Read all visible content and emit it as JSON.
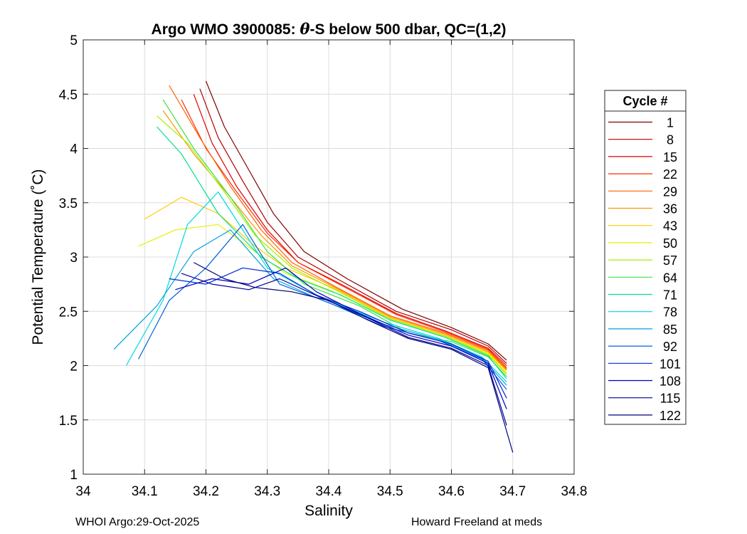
{
  "chart_data": {
    "type": "line",
    "title": "Argo WMO 3900085: θ-S below 500 dbar,  QC=(1,2)",
    "title_parts": {
      "prefix": "Argo WMO 3900085: ",
      "symbol": "θ",
      "suffix": "-S below 500 dbar,  QC=(1,2)"
    },
    "xlabel": "Salinity",
    "ylabel": "Potential Temperature (˚C)",
    "xlim": [
      34,
      34.8
    ],
    "ylim": [
      1,
      5
    ],
    "xticks": [
      34,
      34.1,
      34.2,
      34.3,
      34.4,
      34.5,
      34.6,
      34.7,
      34.8
    ],
    "xtick_labels": [
      "34",
      "34.1",
      "34.2",
      "34.3",
      "34.4",
      "34.5",
      "34.6",
      "34.7",
      "34.8"
    ],
    "yticks": [
      1,
      1.5,
      2,
      2.5,
      3,
      3.5,
      4,
      4.5,
      5
    ],
    "ytick_labels": [
      "1",
      "1.5",
      "2",
      "2.5",
      "3",
      "3.5",
      "4",
      "4.5",
      "5"
    ],
    "grid": true,
    "legend_title": "Cycle #",
    "legend_position": "right, outside plot",
    "series": [
      {
        "name": "1",
        "color": "#800000",
        "s": [
          34.2,
          34.23,
          34.27,
          34.31,
          34.36,
          34.43,
          34.52,
          34.6,
          34.66,
          34.69
        ],
        "t": [
          4.62,
          4.2,
          3.8,
          3.4,
          3.05,
          2.8,
          2.52,
          2.35,
          2.2,
          2.05
        ]
      },
      {
        "name": "8",
        "color": "#b20000",
        "s": [
          34.19,
          34.22,
          34.26,
          34.3,
          34.35,
          34.42,
          34.51,
          34.6,
          34.66,
          34.69
        ],
        "t": [
          4.55,
          4.1,
          3.7,
          3.32,
          3.0,
          2.78,
          2.5,
          2.33,
          2.18,
          2.02
        ]
      },
      {
        "name": "15",
        "color": "#e00000",
        "s": [
          34.18,
          34.21,
          34.25,
          34.3,
          34.35,
          34.42,
          34.51,
          34.59,
          34.66,
          34.69
        ],
        "t": [
          4.5,
          4.05,
          3.65,
          3.25,
          2.95,
          2.75,
          2.48,
          2.32,
          2.16,
          2.0
        ]
      },
      {
        "name": "22",
        "color": "#ff2a00",
        "s": [
          34.16,
          34.2,
          34.25,
          34.3,
          34.35,
          34.42,
          34.51,
          34.59,
          34.66,
          34.69
        ],
        "t": [
          4.45,
          4.0,
          3.6,
          3.22,
          2.95,
          2.74,
          2.47,
          2.31,
          2.15,
          1.98
        ]
      },
      {
        "name": "29",
        "color": "#ff6000",
        "s": [
          34.14,
          34.19,
          34.24,
          34.29,
          34.34,
          34.41,
          34.5,
          34.59,
          34.66,
          34.69
        ],
        "t": [
          4.58,
          4.1,
          3.65,
          3.25,
          2.95,
          2.73,
          2.46,
          2.3,
          2.14,
          1.97
        ]
      },
      {
        "name": "36",
        "color": "#ff9500",
        "s": [
          34.13,
          34.18,
          34.24,
          34.29,
          34.34,
          34.41,
          34.5,
          34.59,
          34.66,
          34.69
        ],
        "t": [
          4.35,
          3.95,
          3.55,
          3.2,
          2.92,
          2.72,
          2.45,
          2.29,
          2.13,
          1.96
        ]
      },
      {
        "name": "43",
        "color": "#ffcc00",
        "s": [
          34.1,
          34.16,
          34.22,
          34.28,
          34.33,
          34.41,
          34.5,
          34.59,
          34.66,
          34.69
        ],
        "t": [
          3.35,
          3.55,
          3.4,
          3.1,
          2.9,
          2.71,
          2.44,
          2.28,
          2.12,
          1.95
        ]
      },
      {
        "name": "50",
        "color": "#e6f000",
        "s": [
          34.09,
          34.15,
          34.22,
          34.28,
          34.33,
          34.4,
          34.5,
          34.59,
          34.66,
          34.69
        ],
        "t": [
          3.1,
          3.25,
          3.3,
          3.05,
          2.85,
          2.7,
          2.43,
          2.27,
          2.11,
          1.93
        ]
      },
      {
        "name": "57",
        "color": "#a6f000",
        "s": [
          34.12,
          34.17,
          34.23,
          34.28,
          34.34,
          34.41,
          34.5,
          34.59,
          34.66,
          34.69
        ],
        "t": [
          4.3,
          4.05,
          3.6,
          3.2,
          2.9,
          2.7,
          2.43,
          2.27,
          2.1,
          1.92
        ]
      },
      {
        "name": "64",
        "color": "#40e040",
        "s": [
          34.13,
          34.18,
          34.24,
          34.3,
          34.36,
          34.45,
          34.53,
          34.6,
          34.66,
          34.69
        ],
        "t": [
          4.45,
          4.0,
          3.55,
          3.05,
          2.75,
          2.55,
          2.3,
          2.22,
          2.08,
          1.9
        ]
      },
      {
        "name": "71",
        "color": "#00e08c",
        "s": [
          34.12,
          34.16,
          34.22,
          34.29,
          34.35,
          34.42,
          34.5,
          34.59,
          34.66,
          34.69
        ],
        "t": [
          4.2,
          3.95,
          3.4,
          3.0,
          2.8,
          2.65,
          2.42,
          2.26,
          2.09,
          1.88
        ]
      },
      {
        "name": "78",
        "color": "#00d8e0",
        "s": [
          34.07,
          34.13,
          34.17,
          34.22,
          34.3,
          34.39,
          34.49,
          34.58,
          34.65,
          34.69
        ],
        "t": [
          2.0,
          2.6,
          3.3,
          3.6,
          2.9,
          2.62,
          2.4,
          2.25,
          2.08,
          1.85
        ]
      },
      {
        "name": "85",
        "color": "#00a0e0",
        "s": [
          34.05,
          34.12,
          34.18,
          34.24,
          34.31,
          34.39,
          34.49,
          34.58,
          34.65,
          34.69
        ],
        "t": [
          2.15,
          2.55,
          3.05,
          3.25,
          2.8,
          2.6,
          2.38,
          2.24,
          2.07,
          1.82
        ]
      },
      {
        "name": "92",
        "color": "#0060e0",
        "s": [
          34.09,
          34.14,
          34.2,
          34.26,
          34.32,
          34.4,
          34.49,
          34.58,
          34.65,
          34.69
        ],
        "t": [
          2.06,
          2.6,
          2.9,
          3.3,
          2.75,
          2.58,
          2.36,
          2.23,
          2.06,
          1.78
        ]
      },
      {
        "name": "101",
        "color": "#0028d8",
        "s": [
          34.14,
          34.2,
          34.26,
          34.32,
          34.38,
          34.45,
          34.53,
          34.6,
          34.66,
          34.69
        ],
        "t": [
          2.8,
          2.75,
          2.9,
          2.85,
          2.65,
          2.5,
          2.3,
          2.2,
          2.04,
          1.7
        ]
      },
      {
        "name": "108",
        "color": "#0000c0",
        "s": [
          34.15,
          34.21,
          34.27,
          34.33,
          34.38,
          34.45,
          34.53,
          34.6,
          34.66,
          34.69
        ],
        "t": [
          2.7,
          2.8,
          2.75,
          2.9,
          2.68,
          2.48,
          2.28,
          2.18,
          2.02,
          1.6
        ]
      },
      {
        "name": "115",
        "color": "#000099",
        "s": [
          34.16,
          34.21,
          34.27,
          34.32,
          34.39,
          34.46,
          34.53,
          34.6,
          34.66,
          34.69
        ],
        "t": [
          2.85,
          2.75,
          2.7,
          2.8,
          2.62,
          2.45,
          2.26,
          2.16,
          2.0,
          1.45
        ]
      },
      {
        "name": "122",
        "color": "#00007a",
        "s": [
          34.18,
          34.23,
          34.28,
          34.34,
          34.4,
          34.46,
          34.53,
          34.6,
          34.66,
          34.7
        ],
        "t": [
          2.95,
          2.8,
          2.72,
          2.68,
          2.6,
          2.43,
          2.25,
          2.15,
          1.98,
          1.2
        ]
      }
    ]
  },
  "footer": {
    "left": "WHOI Argo:29-Oct-2025",
    "right": "Howard Freeland at meds"
  }
}
